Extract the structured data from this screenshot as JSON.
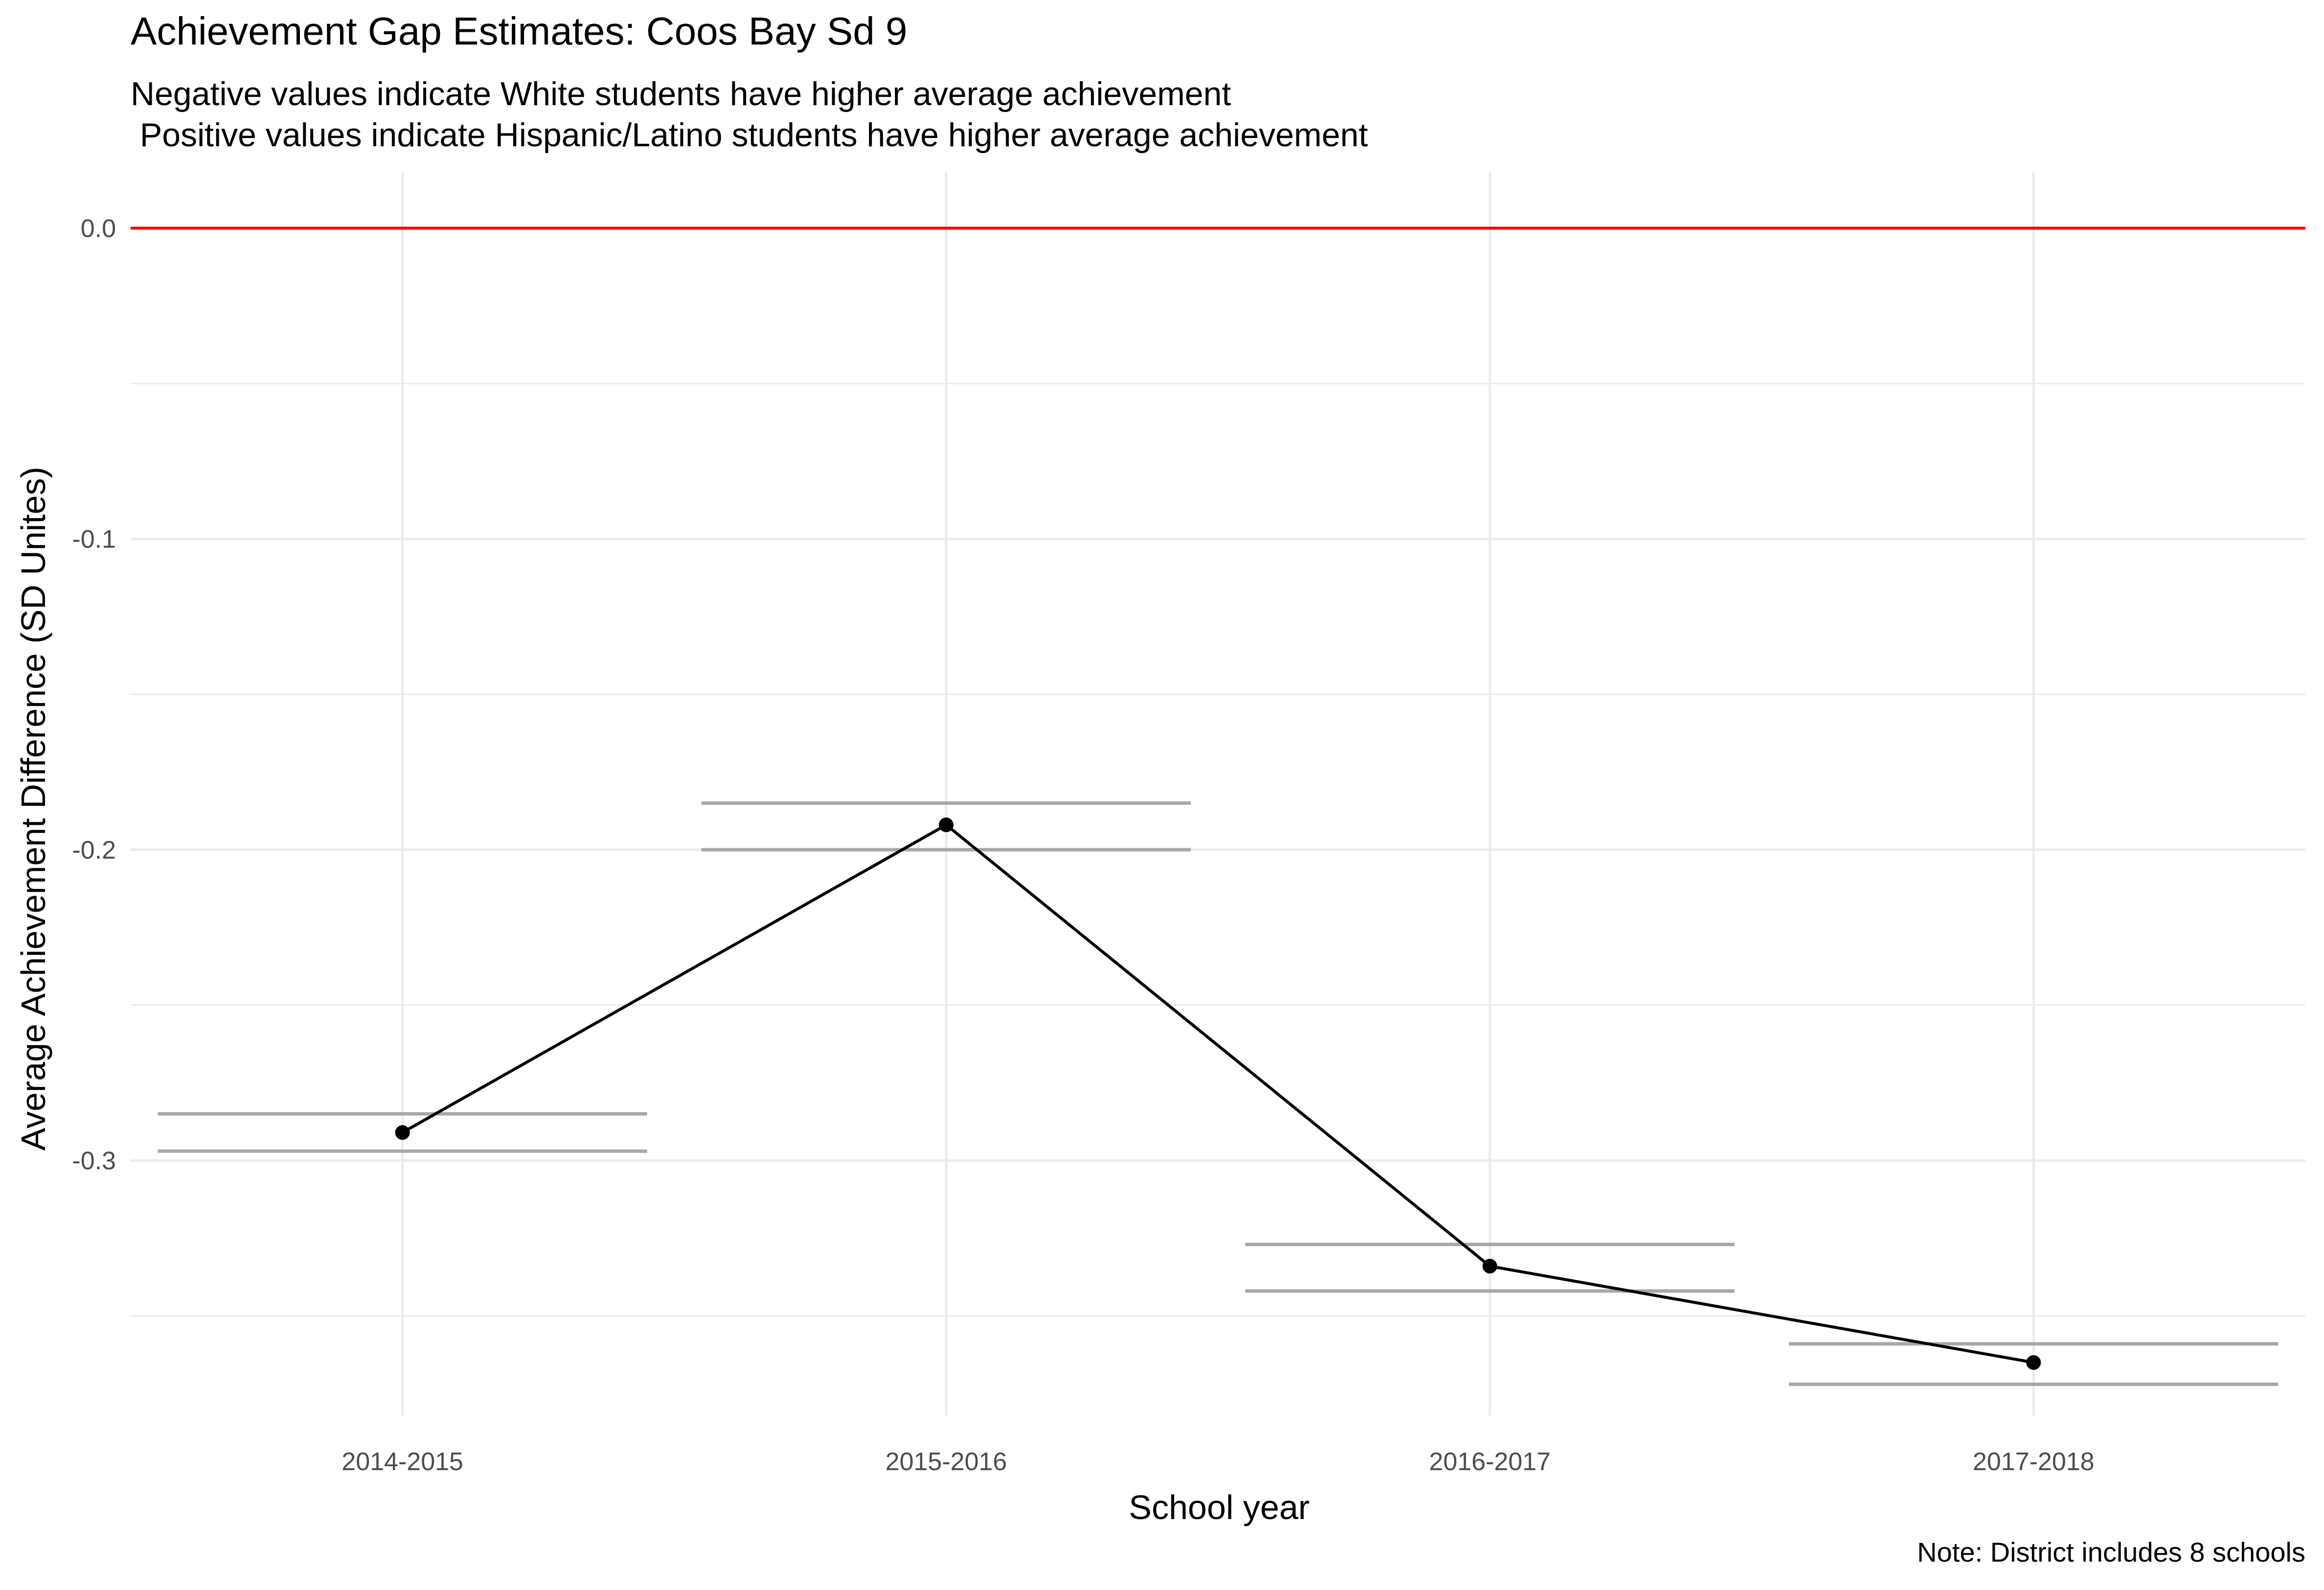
{
  "chart_data": {
    "type": "line",
    "title": "Achievement Gap Estimates: Coos Bay Sd 9",
    "subtitle": "Negative values indicate White students have higher average achievement\n Positive values indicate Hispanic/Latino students have higher average achievement",
    "caption": "Note: District includes 8 schools",
    "xlabel": "School year",
    "ylabel": "Average Achievement Difference (SD Unites)",
    "categories": [
      "2014-2015",
      "2015-2016",
      "2016-2017",
      "2017-2018"
    ],
    "values": [
      -0.291,
      -0.192,
      -0.334,
      -0.365
    ],
    "interval_lower": [
      -0.297,
      -0.2,
      -0.342,
      -0.372
    ],
    "interval_upper": [
      -0.285,
      -0.185,
      -0.327,
      -0.359
    ],
    "reference_line": 0.0,
    "y_ticks": [
      "0.0",
      "-0.1",
      "-0.2",
      "-0.3"
    ],
    "ylim": [
      -0.382,
      0.018
    ],
    "grid": true,
    "colors": {
      "line": "#000000",
      "interval": "#a8a8a8",
      "reference": "#ff0000",
      "grid": "#ebebeb"
    }
  }
}
